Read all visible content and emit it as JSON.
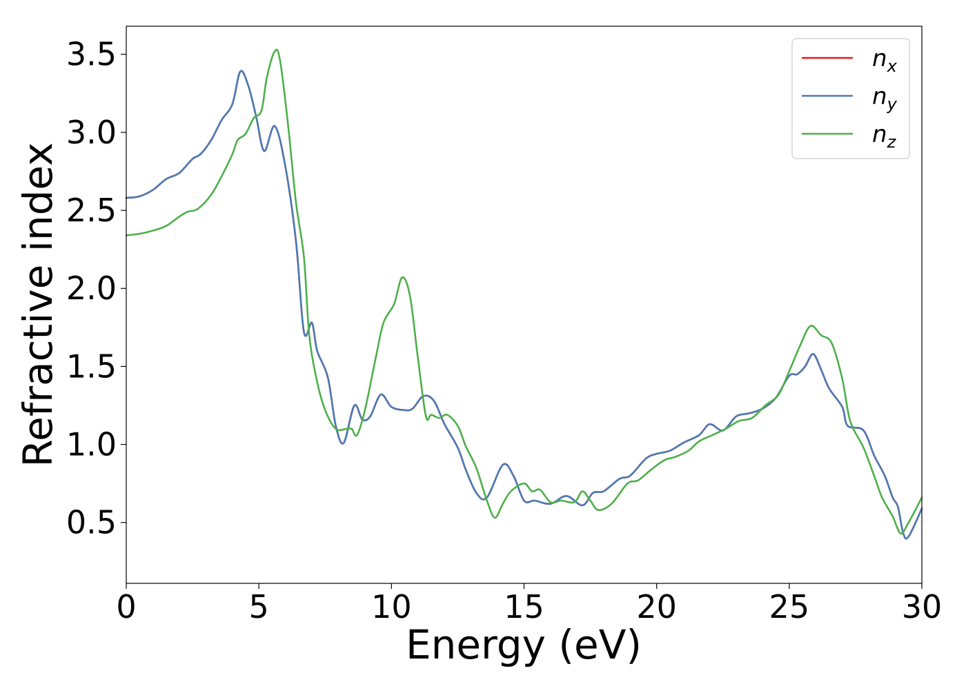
{
  "chart_data": {
    "type": "line",
    "title": "",
    "xlabel": "Energy (eV)",
    "ylabel": "Refractive index",
    "xlim": [
      0,
      30
    ],
    "ylim": [
      0.11,
      3.68
    ],
    "xticks": [
      0,
      5,
      10,
      15,
      20,
      25,
      30
    ],
    "xtick_labels": [
      "0",
      "5",
      "10",
      "15",
      "20",
      "25",
      "30"
    ],
    "yticks": [
      0.5,
      1.0,
      1.5,
      2.0,
      2.5,
      3.0,
      3.5
    ],
    "ytick_labels": [
      "0.5",
      "1.0",
      "1.5",
      "2.0",
      "2.5",
      "3.0",
      "3.5"
    ],
    "grid": false,
    "legend_position": "top-right",
    "series": [
      {
        "name": "n",
        "subscript": "x",
        "color": "#e41a1c",
        "points": [
          [
            0,
            2.58
          ],
          [
            0.5,
            2.59
          ],
          [
            1,
            2.63
          ],
          [
            1.5,
            2.7
          ],
          [
            2,
            2.74
          ],
          [
            2.5,
            2.83
          ],
          [
            2.8,
            2.86
          ],
          [
            3.2,
            2.95
          ],
          [
            3.6,
            3.08
          ],
          [
            4.0,
            3.18
          ],
          [
            4.3,
            3.39
          ],
          [
            4.6,
            3.3
          ],
          [
            4.9,
            3.1
          ],
          [
            5.2,
            2.88
          ],
          [
            5.6,
            3.04
          ],
          [
            6.0,
            2.78
          ],
          [
            6.4,
            2.3
          ],
          [
            6.7,
            1.72
          ],
          [
            7.0,
            1.78
          ],
          [
            7.2,
            1.6
          ],
          [
            7.6,
            1.43
          ],
          [
            7.9,
            1.12
          ],
          [
            8.2,
            1.01
          ],
          [
            8.6,
            1.25
          ],
          [
            8.9,
            1.16
          ],
          [
            9.2,
            1.18
          ],
          [
            9.6,
            1.32
          ],
          [
            10.0,
            1.24
          ],
          [
            10.5,
            1.22
          ],
          [
            10.8,
            1.23
          ],
          [
            11.2,
            1.31
          ],
          [
            11.6,
            1.28
          ],
          [
            12.0,
            1.13
          ],
          [
            12.5,
            0.98
          ],
          [
            12.8,
            0.84
          ],
          [
            13.2,
            0.69
          ],
          [
            13.6,
            0.66
          ],
          [
            14.2,
            0.87
          ],
          [
            14.6,
            0.8
          ],
          [
            15.0,
            0.64
          ],
          [
            15.4,
            0.64
          ],
          [
            16.0,
            0.62
          ],
          [
            16.6,
            0.67
          ],
          [
            17.2,
            0.61
          ],
          [
            17.6,
            0.69
          ],
          [
            18.0,
            0.7
          ],
          [
            18.6,
            0.78
          ],
          [
            19.0,
            0.8
          ],
          [
            19.6,
            0.91
          ],
          [
            20.0,
            0.94
          ],
          [
            20.5,
            0.96
          ],
          [
            21.0,
            1.01
          ],
          [
            21.6,
            1.06
          ],
          [
            22.0,
            1.13
          ],
          [
            22.5,
            1.09
          ],
          [
            23.0,
            1.18
          ],
          [
            23.5,
            1.2
          ],
          [
            24.0,
            1.23
          ],
          [
            24.5,
            1.3
          ],
          [
            25.0,
            1.44
          ],
          [
            25.3,
            1.45
          ],
          [
            25.6,
            1.5
          ],
          [
            25.9,
            1.58
          ],
          [
            26.2,
            1.48
          ],
          [
            26.5,
            1.36
          ],
          [
            27.0,
            1.24
          ],
          [
            27.2,
            1.12
          ],
          [
            27.8,
            1.09
          ],
          [
            28.2,
            0.93
          ],
          [
            28.6,
            0.8
          ],
          [
            28.9,
            0.66
          ],
          [
            29.1,
            0.6
          ],
          [
            29.3,
            0.43
          ],
          [
            29.5,
            0.41
          ],
          [
            30.0,
            0.59
          ]
        ]
      },
      {
        "name": "n",
        "subscript": "y",
        "color": "#4a7bb5",
        "points": [
          [
            0,
            2.58
          ],
          [
            0.5,
            2.59
          ],
          [
            1,
            2.63
          ],
          [
            1.5,
            2.7
          ],
          [
            2,
            2.74
          ],
          [
            2.5,
            2.83
          ],
          [
            2.8,
            2.86
          ],
          [
            3.2,
            2.95
          ],
          [
            3.6,
            3.08
          ],
          [
            4.0,
            3.18
          ],
          [
            4.3,
            3.39
          ],
          [
            4.6,
            3.3
          ],
          [
            4.9,
            3.1
          ],
          [
            5.2,
            2.88
          ],
          [
            5.6,
            3.04
          ],
          [
            6.0,
            2.78
          ],
          [
            6.4,
            2.3
          ],
          [
            6.7,
            1.72
          ],
          [
            7.0,
            1.78
          ],
          [
            7.2,
            1.6
          ],
          [
            7.6,
            1.43
          ],
          [
            7.9,
            1.12
          ],
          [
            8.2,
            1.01
          ],
          [
            8.6,
            1.25
          ],
          [
            8.9,
            1.16
          ],
          [
            9.2,
            1.18
          ],
          [
            9.6,
            1.32
          ],
          [
            10.0,
            1.24
          ],
          [
            10.5,
            1.22
          ],
          [
            10.8,
            1.23
          ],
          [
            11.2,
            1.31
          ],
          [
            11.6,
            1.28
          ],
          [
            12.0,
            1.13
          ],
          [
            12.5,
            0.98
          ],
          [
            12.8,
            0.84
          ],
          [
            13.2,
            0.69
          ],
          [
            13.6,
            0.66
          ],
          [
            14.2,
            0.87
          ],
          [
            14.6,
            0.8
          ],
          [
            15.0,
            0.64
          ],
          [
            15.4,
            0.64
          ],
          [
            16.0,
            0.62
          ],
          [
            16.6,
            0.67
          ],
          [
            17.2,
            0.61
          ],
          [
            17.6,
            0.69
          ],
          [
            18.0,
            0.7
          ],
          [
            18.6,
            0.78
          ],
          [
            19.0,
            0.8
          ],
          [
            19.6,
            0.91
          ],
          [
            20.0,
            0.94
          ],
          [
            20.5,
            0.96
          ],
          [
            21.0,
            1.01
          ],
          [
            21.6,
            1.06
          ],
          [
            22.0,
            1.13
          ],
          [
            22.5,
            1.09
          ],
          [
            23.0,
            1.18
          ],
          [
            23.5,
            1.2
          ],
          [
            24.0,
            1.23
          ],
          [
            24.5,
            1.3
          ],
          [
            25.0,
            1.44
          ],
          [
            25.3,
            1.45
          ],
          [
            25.6,
            1.5
          ],
          [
            25.9,
            1.58
          ],
          [
            26.2,
            1.48
          ],
          [
            26.5,
            1.36
          ],
          [
            27.0,
            1.24
          ],
          [
            27.2,
            1.12
          ],
          [
            27.8,
            1.09
          ],
          [
            28.2,
            0.93
          ],
          [
            28.6,
            0.8
          ],
          [
            28.9,
            0.66
          ],
          [
            29.1,
            0.6
          ],
          [
            29.3,
            0.43
          ],
          [
            29.5,
            0.41
          ],
          [
            30.0,
            0.59
          ]
        ]
      },
      {
        "name": "n",
        "subscript": "z",
        "color": "#4daf4a",
        "points": [
          [
            0,
            2.34
          ],
          [
            0.5,
            2.35
          ],
          [
            1,
            2.37
          ],
          [
            1.5,
            2.4
          ],
          [
            2,
            2.46
          ],
          [
            2.3,
            2.49
          ],
          [
            2.7,
            2.51
          ],
          [
            3.2,
            2.6
          ],
          [
            3.6,
            2.72
          ],
          [
            4.0,
            2.86
          ],
          [
            4.2,
            2.95
          ],
          [
            4.5,
            2.99
          ],
          [
            4.8,
            3.09
          ],
          [
            5.1,
            3.14
          ],
          [
            5.3,
            3.35
          ],
          [
            5.6,
            3.52
          ],
          [
            5.8,
            3.46
          ],
          [
            6.1,
            3.05
          ],
          [
            6.4,
            2.55
          ],
          [
            6.7,
            2.2
          ],
          [
            6.9,
            1.7
          ],
          [
            7.2,
            1.4
          ],
          [
            7.5,
            1.22
          ],
          [
            7.9,
            1.1
          ],
          [
            8.3,
            1.1
          ],
          [
            8.5,
            1.1
          ],
          [
            8.7,
            1.06
          ],
          [
            9.0,
            1.22
          ],
          [
            9.4,
            1.55
          ],
          [
            9.7,
            1.78
          ],
          [
            10.1,
            1.9
          ],
          [
            10.4,
            2.07
          ],
          [
            10.7,
            1.95
          ],
          [
            11.0,
            1.55
          ],
          [
            11.3,
            1.18
          ],
          [
            11.5,
            1.19
          ],
          [
            11.8,
            1.17
          ],
          [
            12.1,
            1.19
          ],
          [
            12.5,
            1.12
          ],
          [
            12.8,
            0.99
          ],
          [
            13.2,
            0.85
          ],
          [
            13.6,
            0.64
          ],
          [
            13.9,
            0.53
          ],
          [
            14.2,
            0.62
          ],
          [
            14.5,
            0.7
          ],
          [
            15.0,
            0.75
          ],
          [
            15.3,
            0.7
          ],
          [
            15.6,
            0.71
          ],
          [
            16.0,
            0.63
          ],
          [
            16.4,
            0.64
          ],
          [
            16.9,
            0.63
          ],
          [
            17.2,
            0.7
          ],
          [
            17.5,
            0.64
          ],
          [
            17.8,
            0.58
          ],
          [
            18.3,
            0.62
          ],
          [
            18.9,
            0.75
          ],
          [
            19.3,
            0.77
          ],
          [
            19.8,
            0.84
          ],
          [
            20.3,
            0.9
          ],
          [
            20.7,
            0.92
          ],
          [
            21.2,
            0.96
          ],
          [
            21.6,
            1.02
          ],
          [
            22.1,
            1.06
          ],
          [
            22.6,
            1.1
          ],
          [
            23.1,
            1.15
          ],
          [
            23.6,
            1.17
          ],
          [
            24.1,
            1.25
          ],
          [
            24.6,
            1.32
          ],
          [
            25.0,
            1.47
          ],
          [
            25.4,
            1.63
          ],
          [
            25.8,
            1.76
          ],
          [
            26.2,
            1.7
          ],
          [
            26.6,
            1.65
          ],
          [
            27.0,
            1.42
          ],
          [
            27.3,
            1.15
          ],
          [
            27.8,
            0.98
          ],
          [
            28.2,
            0.8
          ],
          [
            28.5,
            0.66
          ],
          [
            28.9,
            0.54
          ],
          [
            29.2,
            0.43
          ],
          [
            29.5,
            0.5
          ],
          [
            30.0,
            0.66
          ]
        ]
      }
    ]
  }
}
